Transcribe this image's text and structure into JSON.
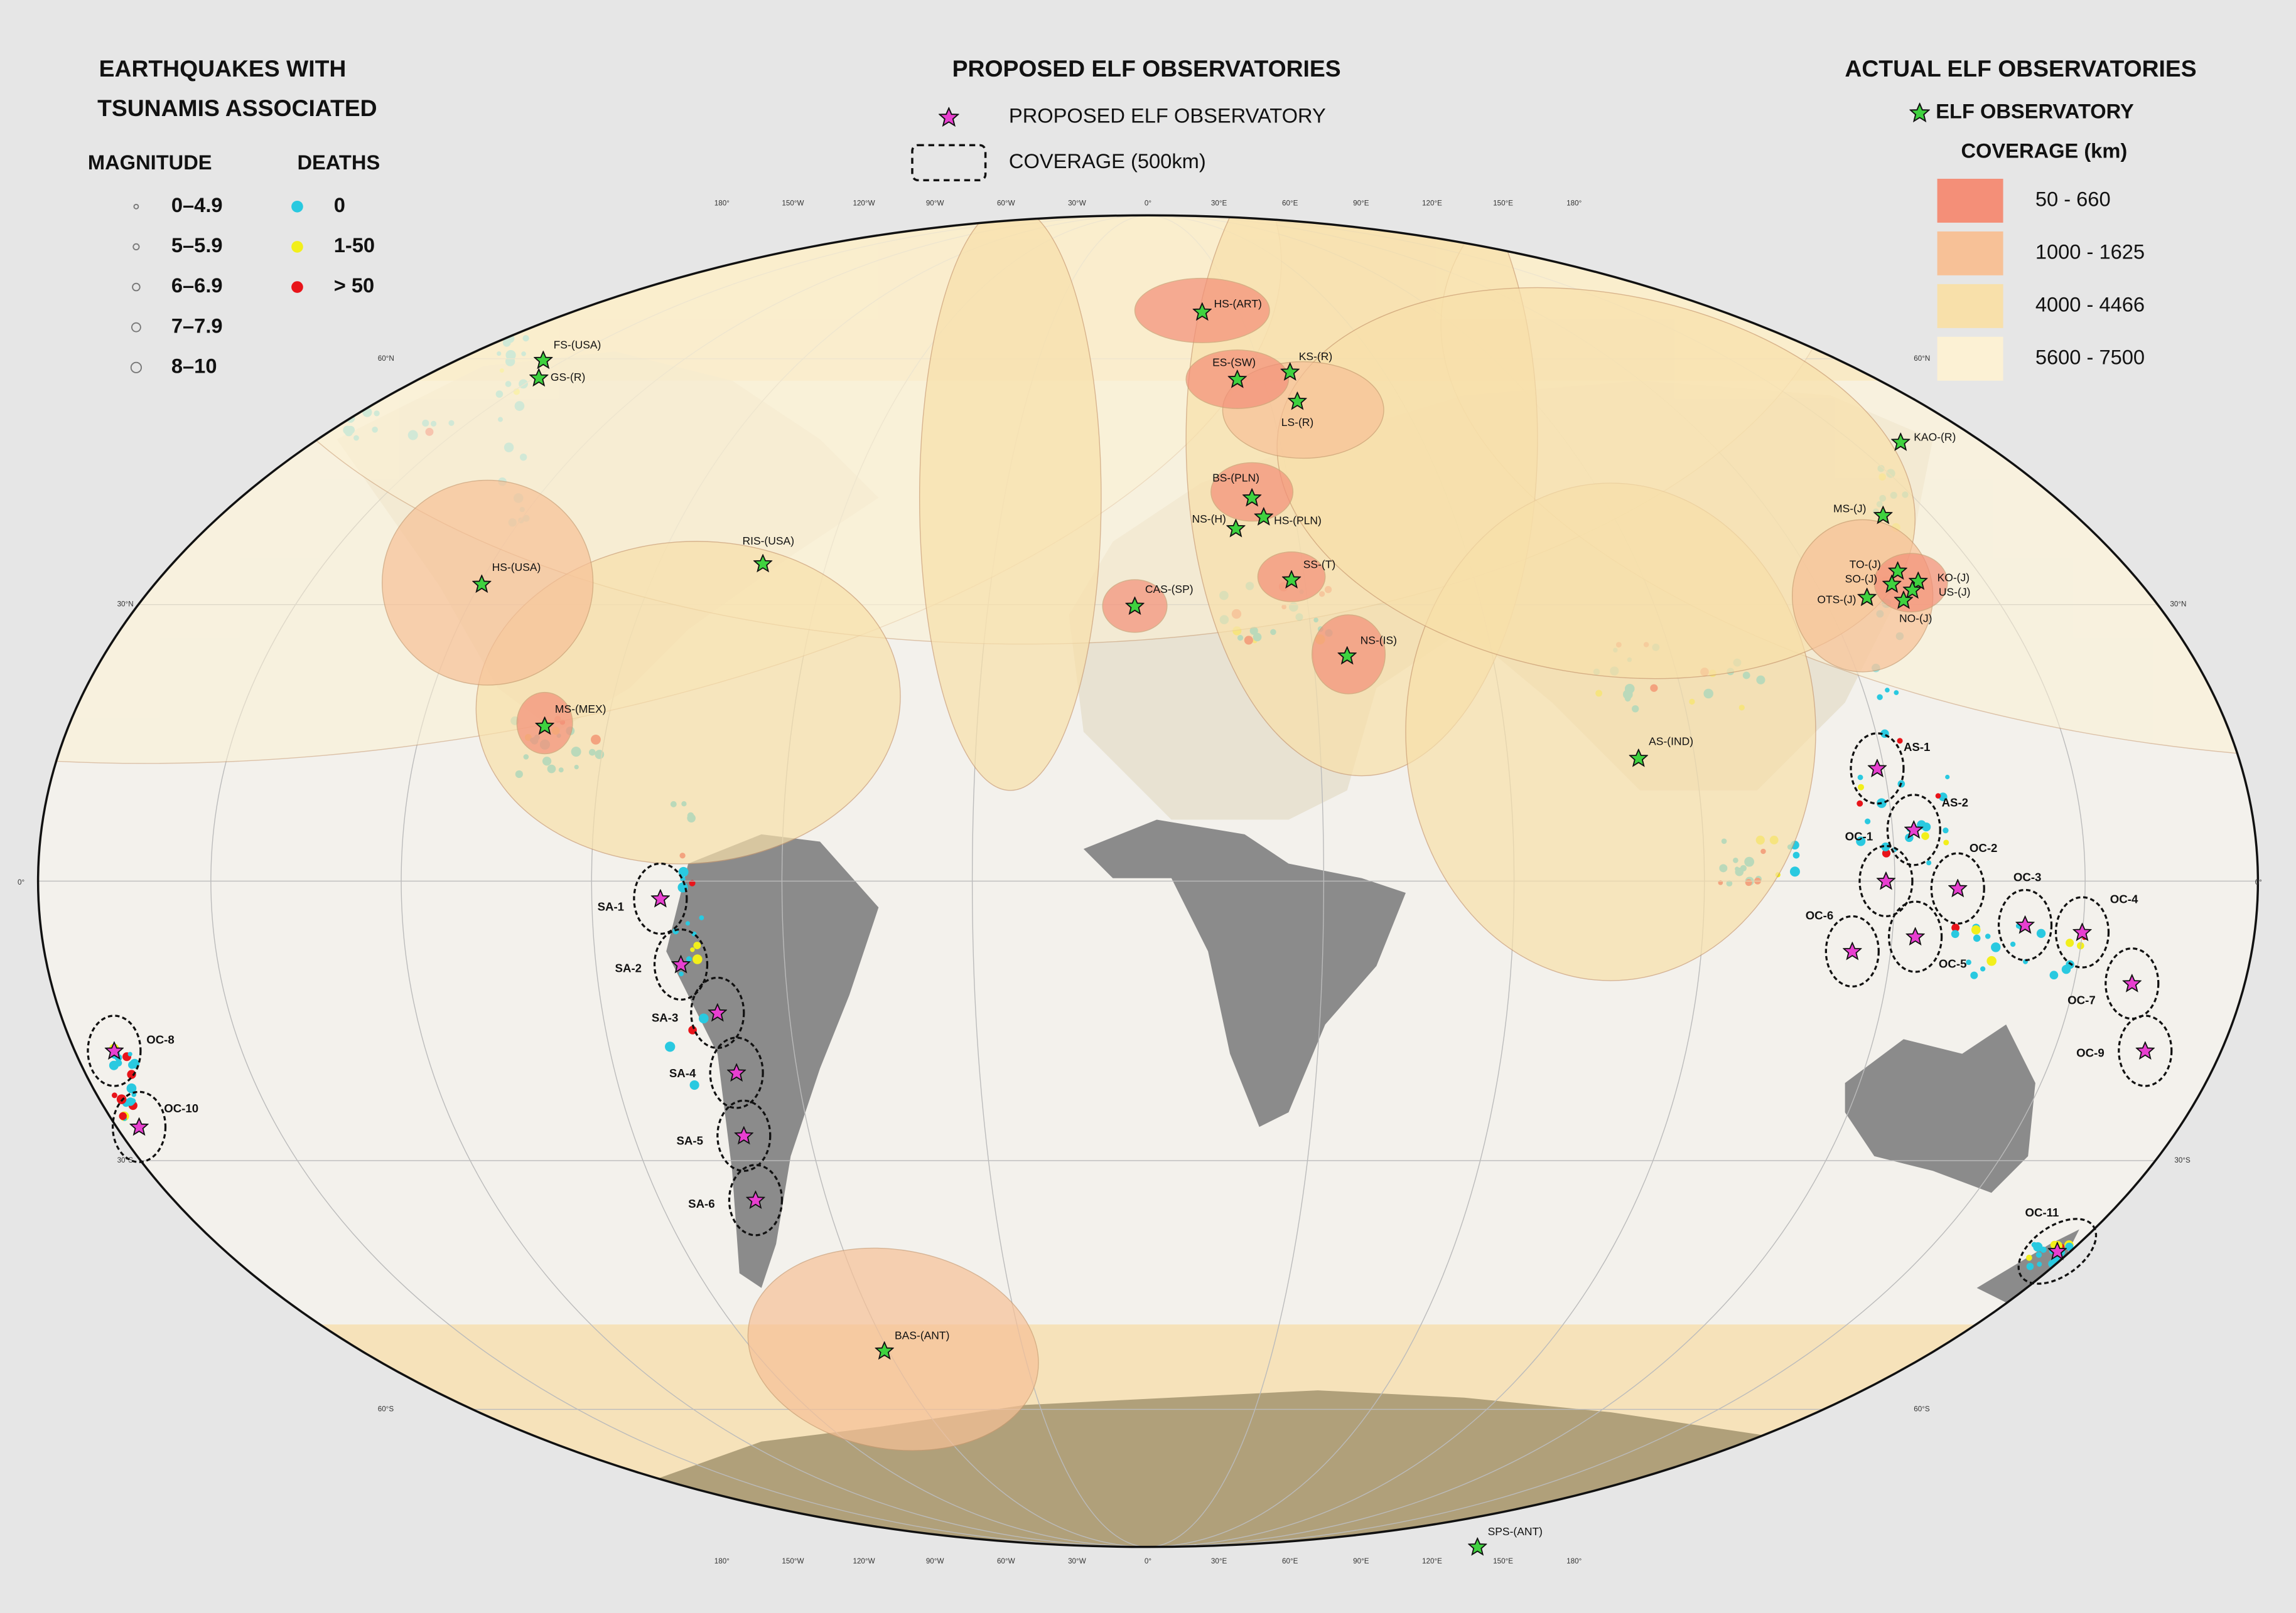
{
  "legend_left": {
    "title_lines": [
      "EARTHQUAKES WITH",
      "TSUNAMIS ASSOCIATED"
    ],
    "magnitude_header": "MAGNITUDE",
    "deaths_header": "DEATHS",
    "magnitudes": [
      "0–4.9",
      "5–5.9",
      "6–6.9",
      "7–7.9",
      "8–10"
    ],
    "deaths": [
      {
        "label": "0",
        "color": "#29c9e0"
      },
      {
        "label": "1-50",
        "color": "#f2ef1b"
      },
      {
        "label": "> 50",
        "color": "#e8141a"
      }
    ]
  },
  "legend_center": {
    "title": "PROPOSED ELF OBSERVATORIES",
    "observatory": "PROPOSED ELF OBSERVATORY",
    "coverage": "COVERAGE (500km)"
  },
  "legend_right": {
    "title": "ACTUAL ELF OBSERVATORIES",
    "observatory": "ELF OBSERVATORY",
    "coverage_title": "COVERAGE (km)",
    "classes": [
      {
        "label": "50 - 660",
        "color": "#f48f78"
      },
      {
        "label": "1000 - 1625",
        "color": "#f7c197"
      },
      {
        "label": "4000 - 4466",
        "color": "#f8e0aa"
      },
      {
        "label": "5600 - 7500",
        "color": "#fcf1d4"
      }
    ]
  },
  "graticule": {
    "longitudes": [
      "180°",
      "150°W",
      "120°W",
      "90°W",
      "60°W",
      "30°W",
      "0°",
      "30°E",
      "60°E",
      "90°E",
      "120°E",
      "150°E",
      "180°"
    ],
    "latitudes": [
      "60°N",
      "30°N",
      "0°",
      "30°S",
      "60°S"
    ]
  },
  "actual_observatories": [
    "FS-(USA)",
    "GS-(R)",
    "HS-(ART)",
    "ES-(SW)",
    "KS-(R)",
    "LS-(R)",
    "BS-(PLN)",
    "NS-(H)",
    "HS-(PLN)",
    "SS-(T)",
    "CAS-(SP)",
    "NS-(IS)",
    "HS-(USA)",
    "RIS-(USA)",
    "MS-(MEX)",
    "KAO-(R)",
    "MS-(J)",
    "TO-(J)",
    "SO-(J)",
    "OTS-(J)",
    "KO-(J)",
    "US-(J)",
    "NO-(J)",
    "AS-(IND)",
    "BAS-(ANT)",
    "SPS-(ANT)"
  ],
  "proposed_observatories": [
    "SA-1",
    "SA-2",
    "SA-3",
    "SA-4",
    "SA-5",
    "SA-6",
    "OC-8",
    "OC-10",
    "AS-1",
    "AS-2",
    "OC-1",
    "OC-2",
    "OC-3",
    "OC-4",
    "OC-5",
    "OC-6",
    "OC-7",
    "OC-9",
    "OC-11"
  ]
}
